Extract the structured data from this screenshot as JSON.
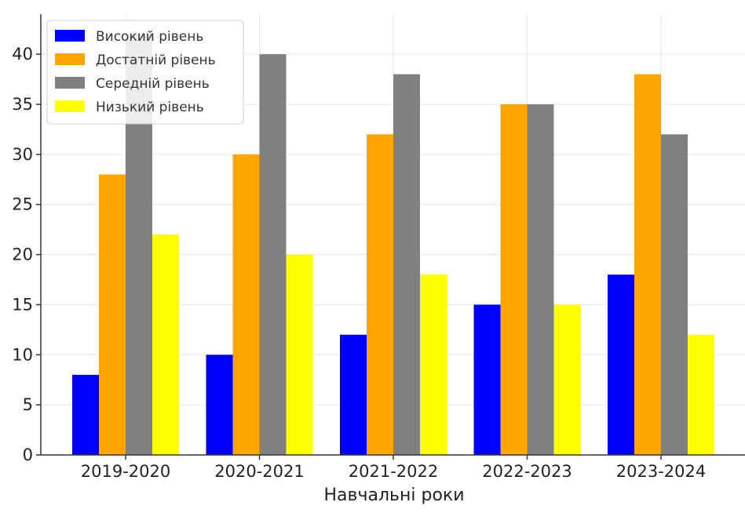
{
  "chart_data": {
    "type": "bar",
    "title": "",
    "xlabel": "Навчальні роки",
    "ylabel": "",
    "categories": [
      "2019-2020",
      "2020-2021",
      "2021-2022",
      "2022-2023",
      "2023-2024"
    ],
    "series": [
      {
        "name": "Високий рівень",
        "color": "#0000ff",
        "values": [
          8,
          10,
          12,
          15,
          18
        ]
      },
      {
        "name": "Достатній рівень",
        "color": "#ffa500",
        "values": [
          28,
          30,
          32,
          35,
          38
        ]
      },
      {
        "name": "Середній рівень",
        "color": "#808080",
        "values": [
          42,
          40,
          38,
          35,
          32
        ]
      },
      {
        "name": "Низький рівень",
        "color": "#ffff00",
        "values": [
          22,
          20,
          18,
          15,
          12
        ]
      }
    ],
    "ylim": [
      0,
      44
    ],
    "yticks": [
      0,
      5,
      10,
      15,
      20,
      25,
      30,
      35,
      40
    ],
    "grid": true,
    "legend_position": "top-left"
  }
}
